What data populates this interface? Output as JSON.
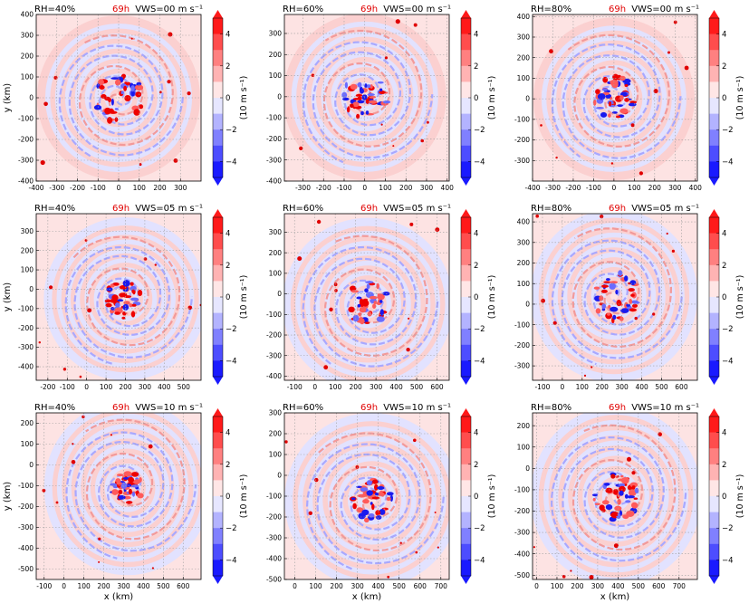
{
  "figure": {
    "colorbar_label": "(10 m s⁻¹)",
    "colorbar_ticks": [
      4,
      2,
      0,
      -2,
      -4
    ],
    "colorbar_tick_labels": [
      "4",
      "2",
      "0",
      "−2",
      "−4"
    ],
    "colorbar_colors": [
      "#ff1a1a",
      "#ff4d4d",
      "#ff8080",
      "#ffb3b3",
      "#ffe6e6",
      "#e6e6ff",
      "#b3b3ff",
      "#8080ff",
      "#4d4dff",
      "#1a1aff"
    ],
    "x_axis_label": "x (km)",
    "y_axis_label": "y (km)"
  },
  "chart_data": [
    {
      "type": "heatmap",
      "rh": "RH=40%",
      "time": "69h",
      "vws": "VWS=00 m s⁻¹",
      "xlim": [
        -400,
        400
      ],
      "ylim": [
        -400,
        400
      ],
      "xticks": [
        -400,
        -300,
        -200,
        -100,
        0,
        100,
        200,
        300
      ],
      "yticks": [
        -400,
        -300,
        -200,
        -100,
        0,
        100,
        200,
        300,
        400
      ],
      "center": [
        0,
        0
      ],
      "core_radius": 120,
      "band_radius": 380,
      "seed": 11,
      "show_xticks": true,
      "show_xlabel": false,
      "show_ylabel": true
    },
    {
      "type": "heatmap",
      "rh": "RH=60%",
      "time": "69h",
      "vws": "VWS=00 m s⁻¹",
      "xlim": [
        -390,
        410
      ],
      "ylim": [
        -400,
        390
      ],
      "xticks": [
        -300,
        -200,
        -100,
        0,
        100,
        200,
        300,
        400
      ],
      "yticks": [
        -400,
        -300,
        -200,
        -100,
        0,
        100,
        200,
        300
      ],
      "center": [
        0,
        0
      ],
      "core_radius": 110,
      "band_radius": 400,
      "seed": 23,
      "show_xticks": true,
      "show_xlabel": false,
      "show_ylabel": false
    },
    {
      "type": "heatmap",
      "rh": "RH=80%",
      "time": "69h",
      "vws": "VWS=00 m s⁻¹",
      "xlim": [
        -400,
        410
      ],
      "ylim": [
        -400,
        410
      ],
      "xticks": [
        -400,
        -300,
        -200,
        -100,
        0,
        100,
        200,
        300,
        400
      ],
      "yticks": [
        -300,
        -200,
        -100,
        0,
        100,
        200,
        300,
        400
      ],
      "center": [
        0,
        0
      ],
      "core_radius": 110,
      "band_radius": 400,
      "seed": 37,
      "show_xticks": true,
      "show_xlabel": false,
      "show_ylabel": false
    },
    {
      "type": "heatmap",
      "rh": "RH=40%",
      "time": "69h",
      "vws": "VWS=05 m s⁻¹",
      "xlim": [
        -260,
        590
      ],
      "ylim": [
        -470,
        390
      ],
      "xticks": [
        -200,
        -100,
        0,
        100,
        200,
        300,
        400,
        500
      ],
      "yticks": [
        -400,
        -300,
        -200,
        -100,
        0,
        100,
        200,
        300
      ],
      "center": [
        200,
        -50
      ],
      "core_radius": 100,
      "band_radius": 420,
      "seed": 41,
      "show_xticks": true,
      "show_xlabel": false,
      "show_ylabel": true
    },
    {
      "type": "heatmap",
      "rh": "RH=60%",
      "time": "69h",
      "vws": "VWS=05 m s⁻¹",
      "xlim": [
        -150,
        660
      ],
      "ylim": [
        -420,
        390
      ],
      "xticks": [
        -100,
        0,
        100,
        200,
        300,
        400,
        500,
        600
      ],
      "yticks": [
        -400,
        -300,
        -200,
        -100,
        0,
        100,
        200,
        300
      ],
      "center": [
        260,
        -50
      ],
      "core_radius": 110,
      "band_radius": 420,
      "seed": 53,
      "show_xticks": true,
      "show_xlabel": false,
      "show_ylabel": false
    },
    {
      "type": "heatmap",
      "rh": "RH=80%",
      "time": "69h",
      "vws": "VWS=05 m s⁻¹",
      "xlim": [
        -150,
        680
      ],
      "ylim": [
        -370,
        440
      ],
      "xticks": [
        -100,
        0,
        100,
        200,
        300,
        400,
        500,
        600
      ],
      "yticks": [
        -300,
        -200,
        -100,
        0,
        100,
        200,
        300,
        400
      ],
      "center": [
        260,
        40
      ],
      "core_radius": 120,
      "band_radius": 420,
      "seed": 67,
      "show_xticks": true,
      "show_xlabel": false,
      "show_ylabel": false
    },
    {
      "type": "heatmap",
      "rh": "RH=40%",
      "time": "69h",
      "vws": "VWS=10 m s⁻¹",
      "xlim": [
        -140,
        690
      ],
      "ylim": [
        -550,
        250
      ],
      "xticks": [
        -100,
        0,
        100,
        200,
        300,
        400,
        500,
        600
      ],
      "yticks": [
        -500,
        -400,
        -300,
        -200,
        -100,
        0,
        100,
        200
      ],
      "center": [
        320,
        -110
      ],
      "core_radius": 80,
      "band_radius": 420,
      "seed": 79,
      "show_xticks": true,
      "show_xlabel": true,
      "show_ylabel": true
    },
    {
      "type": "heatmap",
      "rh": "RH=60%",
      "time": "69h",
      "vws": "VWS=10 m s⁻¹",
      "xlim": [
        -50,
        740
      ],
      "ylim": [
        -500,
        300
      ],
      "xticks": [
        0,
        100,
        200,
        300,
        400,
        500,
        600,
        700
      ],
      "yticks": [
        -500,
        -400,
        -300,
        -200,
        -100,
        0,
        100,
        200,
        300
      ],
      "center": [
        370,
        -120
      ],
      "core_radius": 100,
      "band_radius": 420,
      "seed": 83,
      "show_xticks": true,
      "show_xlabel": true,
      "show_ylabel": false
    },
    {
      "type": "heatmap",
      "rh": "RH=80%",
      "time": "69h",
      "vws": "VWS=10 m s⁻¹",
      "xlim": [
        -20,
        790
      ],
      "ylim": [
        -520,
        260
      ],
      "xticks": [
        0,
        100,
        200,
        300,
        400,
        500,
        600,
        700
      ],
      "yticks": [
        -500,
        -400,
        -300,
        -200,
        -100,
        0,
        100,
        200
      ],
      "center": [
        390,
        -130
      ],
      "core_radius": 110,
      "band_radius": 420,
      "seed": 97,
      "show_xticks": true,
      "show_xlabel": true,
      "show_ylabel": false
    }
  ]
}
